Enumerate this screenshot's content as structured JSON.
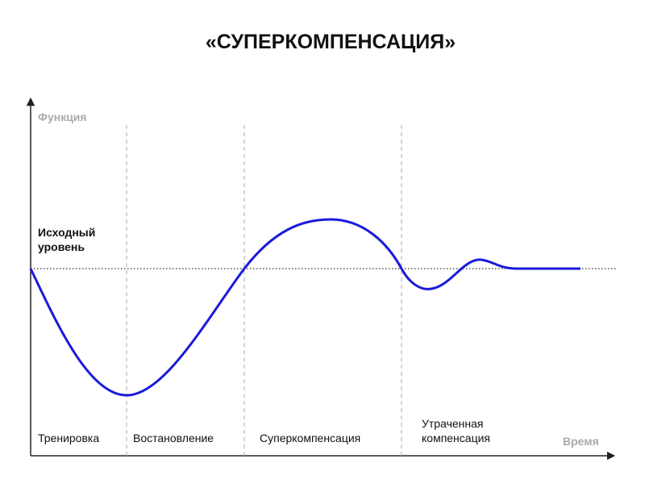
{
  "title": "«СУПЕРКОМПЕНСАЦИЯ»",
  "y_axis_label": "Функция",
  "x_axis_label": "Время",
  "baseline_label": [
    "Исходный",
    "уровень"
  ],
  "phases": [
    {
      "label": [
        "Тренировка"
      ]
    },
    {
      "label": [
        "Востановление"
      ]
    },
    {
      "label": [
        "Суперкомпенсация"
      ]
    },
    {
      "label": [
        "Утраченная",
        "компенсация"
      ]
    }
  ]
}
